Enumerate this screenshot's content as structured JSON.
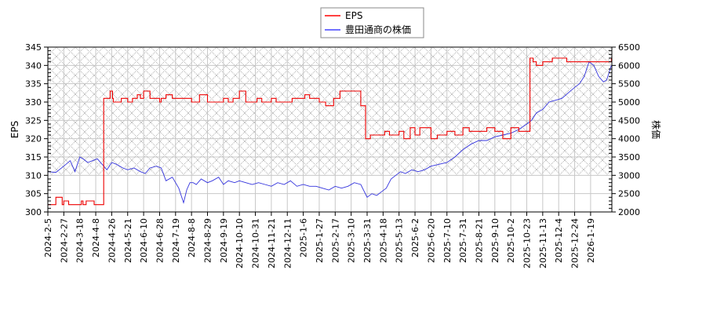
{
  "chart_data": {
    "type": "line",
    "title": "",
    "legend": {
      "position": "top-center",
      "entries": [
        {
          "label": "EPS",
          "color": "#ff0000"
        },
        {
          "label": "豊田通商の株価",
          "color": "#4444ff"
        }
      ]
    },
    "xlabel": "",
    "ylabel_left": "EPS",
    "ylabel_right": "株価",
    "ylim_left": [
      300,
      345
    ],
    "ylim_right": [
      2000,
      6500
    ],
    "yticks_left": [
      300,
      305,
      310,
      315,
      320,
      325,
      330,
      335,
      340,
      345
    ],
    "yticks_right": [
      2000,
      2500,
      3000,
      3500,
      4000,
      4500,
      5000,
      5500,
      6000,
      6500
    ],
    "xticks": [
      "2024-2-5",
      "2024-2-27",
      "2024-3-18",
      "2024-4-8",
      "2024-4-26",
      "2024-5-21",
      "2024-6-10",
      "2024-6-28",
      "2024-7-19",
      "2024-8-8",
      "2024-8-29",
      "2024-9-19",
      "2024-10-10",
      "2024-10-31",
      "2024-11-21",
      "2024-12-11",
      "2025-1-6",
      "2025-1-27",
      "2025-2-17",
      "2025-3-10",
      "2025-3-31",
      "2025-4-18",
      "2025-5-13",
      "2025-6-2",
      "2025-6-20",
      "2025-7-10",
      "2025-7-31",
      "2025-8-21",
      "2025-9-10",
      "2025-10-2",
      "2025-10-23",
      "2025-11-13",
      "2025-12-4",
      "2025-12-24",
      "2026-1-19"
    ],
    "grid": true,
    "hatched_region": {
      "from_right_value": 3000,
      "to_right_value": 6500
    },
    "series": [
      {
        "name": "EPS",
        "axis": "left",
        "color": "#ff0000",
        "x_index": [
          0,
          0.3,
          0.5,
          0.9,
          1.0,
          1.3,
          1.5,
          2.1,
          2.2,
          2.4,
          2.9,
          3.0,
          3.3,
          3.5,
          3.9,
          4.05,
          4.1,
          4.3,
          4.6,
          5.0,
          5.3,
          5.6,
          5.8,
          6.0,
          6.4,
          7.0,
          7.1,
          7.4,
          7.8,
          8.0,
          8.6,
          9.0,
          9.5,
          10.0,
          11.0,
          11.3,
          11.6,
          12.0,
          12.4,
          13.1,
          13.4,
          14.0,
          14.3,
          15.0,
          15.3,
          16.1,
          16.4,
          17.0,
          17.4,
          17.9,
          18.3,
          18.9,
          19.2,
          19.6,
          19.9,
          20.2,
          21.1,
          21.4,
          21.5,
          22.0,
          22.3,
          22.7,
          23.0,
          23.3,
          24.0,
          24.4,
          25.0,
          25.5,
          26.0,
          26.4,
          27.0,
          27.5,
          28.0,
          28.5,
          29.0,
          29.5,
          30.0,
          30.2,
          30.4,
          30.6,
          31.0,
          31.3,
          31.6,
          32.0,
          32.5,
          33.0,
          33.5,
          34.0,
          34.5,
          35.0,
          35.3
        ],
        "values": [
          302,
          302,
          304,
          302,
          303,
          302,
          302,
          303,
          302,
          303,
          302,
          302,
          302,
          331,
          333,
          331,
          330,
          330,
          331,
          330,
          331,
          332,
          331,
          333,
          331,
          330,
          331,
          332,
          331,
          331,
          331,
          330,
          332,
          330,
          331,
          330,
          331,
          333,
          330,
          331,
          330,
          331,
          330,
          330,
          331,
          332,
          331,
          330,
          329,
          331,
          333,
          333,
          333,
          329,
          320,
          321,
          322,
          321,
          321,
          322,
          320,
          323,
          321,
          323,
          320,
          321,
          322,
          321,
          323,
          322,
          322,
          323,
          322,
          320,
          323,
          322,
          322,
          342,
          341,
          340,
          341,
          341,
          342,
          342,
          341,
          341,
          341,
          341,
          341,
          341,
          342
        ]
      },
      {
        "name": "豊田通商の株価",
        "axis": "right",
        "color": "#4444ff",
        "x_index": [
          0,
          0.5,
          1.0,
          1.4,
          1.7,
          2.0,
          2.2,
          2.5,
          2.8,
          3.1,
          3.4,
          3.7,
          4.0,
          4.3,
          4.7,
          5.0,
          5.4,
          5.8,
          6.1,
          6.4,
          6.8,
          7.1,
          7.4,
          7.8,
          8.2,
          8.5,
          8.7,
          8.9,
          9.1,
          9.3,
          9.6,
          10.0,
          10.3,
          10.7,
          11.0,
          11.3,
          11.7,
          12.0,
          12.4,
          12.8,
          13.2,
          13.6,
          14.0,
          14.4,
          14.8,
          15.2,
          15.6,
          16.0,
          16.4,
          16.8,
          17.2,
          17.6,
          18.0,
          18.4,
          18.8,
          19.2,
          19.6,
          20.0,
          20.3,
          20.6,
          20.9,
          21.2,
          21.5,
          21.8,
          22.1,
          22.4,
          22.8,
          23.2,
          23.6,
          24.0,
          24.5,
          25.0,
          25.5,
          26.0,
          26.5,
          27.0,
          27.5,
          28.0,
          28.5,
          29.0,
          29.5,
          30.0,
          30.3,
          30.6,
          31.0,
          31.4,
          31.8,
          32.2,
          32.6,
          33.0,
          33.3,
          33.6,
          33.9,
          34.2,
          34.5,
          34.8,
          35.0,
          35.3
        ],
        "values": [
          3100,
          3080,
          3250,
          3400,
          3100,
          3500,
          3450,
          3350,
          3400,
          3450,
          3300,
          3150,
          3350,
          3300,
          3200,
          3150,
          3200,
          3100,
          3050,
          3200,
          3250,
          3200,
          2850,
          2950,
          2650,
          2250,
          2600,
          2800,
          2800,
          2750,
          2900,
          2800,
          2850,
          2950,
          2750,
          2850,
          2800,
          2850,
          2800,
          2750,
          2800,
          2750,
          2700,
          2800,
          2750,
          2850,
          2700,
          2750,
          2700,
          2700,
          2650,
          2600,
          2700,
          2650,
          2700,
          2800,
          2750,
          2400,
          2500,
          2450,
          2550,
          2650,
          2900,
          3000,
          3100,
          3050,
          3150,
          3100,
          3150,
          3250,
          3300,
          3350,
          3500,
          3700,
          3850,
          3950,
          3950,
          4050,
          4100,
          4150,
          4250,
          4400,
          4500,
          4700,
          4800,
          5000,
          5050,
          5100,
          5250,
          5400,
          5500,
          5700,
          6100,
          6000,
          5700,
          5550,
          5600,
          6000
        ]
      }
    ]
  }
}
